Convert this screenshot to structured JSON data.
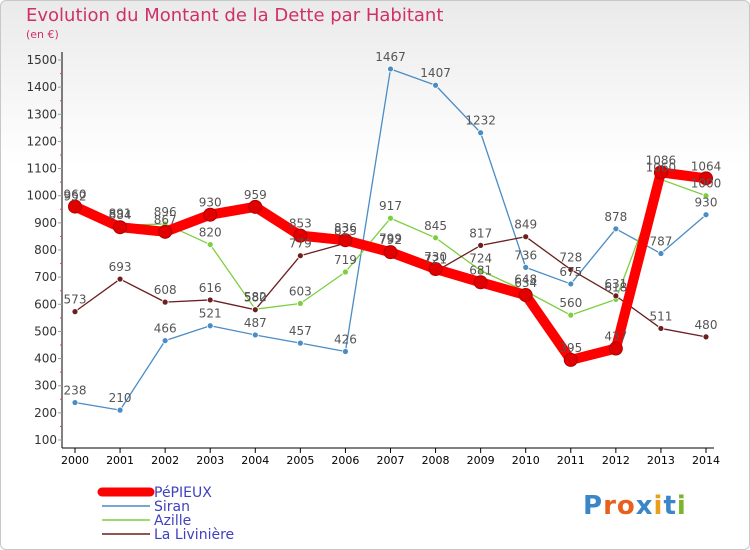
{
  "header": {
    "title": "Evolution du Montant de la Dette par Habitant",
    "subtitle": "(en €)"
  },
  "logo": {
    "text": "Proxiti"
  },
  "chart_data": {
    "type": "line",
    "title": "Evolution du Montant de la Dette par Habitant",
    "ylabel": "(en €)",
    "ylim": [
      100,
      1500
    ],
    "yticks": [
      100,
      200,
      300,
      400,
      500,
      600,
      700,
      800,
      900,
      1000,
      1100,
      1200,
      1300,
      1400,
      1500
    ],
    "x": [
      "2000",
      "2001",
      "2002",
      "2003",
      "2004",
      "2005",
      "2006",
      "2007",
      "2008",
      "2009",
      "2010",
      "2011",
      "2012",
      "2013",
      "2014"
    ],
    "grid": false,
    "legend": "bottom-left",
    "series": [
      {
        "name": "PéPIEUX",
        "color": "#ff0000",
        "values": [
          960,
          884,
          867,
          930,
          959,
          853,
          836,
          792,
          730,
          681,
          634,
          395,
          437,
          1086,
          1064
        ]
      },
      {
        "name": "Siran",
        "color": "#4a8cc4",
        "values": [
          238,
          210,
          466,
          521,
          487,
          457,
          426,
          1467,
          1407,
          1232,
          736,
          675,
          878,
          787,
          930
        ]
      },
      {
        "name": "Azille",
        "color": "#7ccf3f",
        "values": [
          952,
          891,
          896,
          820,
          582,
          603,
          719,
          917,
          845,
          724,
          648,
          560,
          618,
          1060,
          1000
        ]
      },
      {
        "name": "La Livinière",
        "color": "#6b1f1f",
        "values": [
          573,
          693,
          608,
          616,
          580,
          779,
          825,
          799,
          721,
          817,
          849,
          728,
          631,
          511,
          480
        ]
      }
    ]
  }
}
